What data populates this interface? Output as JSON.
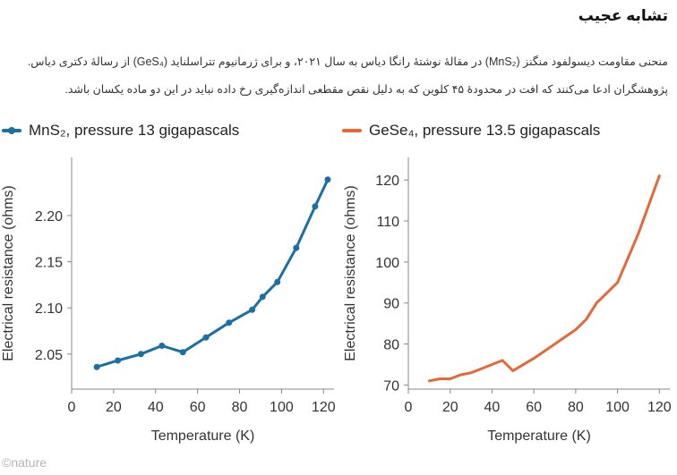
{
  "title": "تشابه عجیب",
  "description": [
    "منحنی مقاومت دیسولفود منگنز (MnS₂) در مقالهٔ نوشتهٔ رانگا دیاس به سال ۲۰۲۱، و برای ژرمانیوم تتراسلناید (GeS₄) از رسالهٔ دکتری دیاس.",
    "پژوهشگران ادعا می‌کنند که افت در محدودهٔ ۴۵ کلوین که به دلیل نقص مقطعی اندازه‌گیری رخ داده نباید در این دو ماده یکسان باشد."
  ],
  "credit": "©nature",
  "colors": {
    "mns2": "#1a6fa3",
    "gese4": "#e3693a",
    "axis": "#888888"
  },
  "chart_data": [
    {
      "type": "line",
      "legend_label": "MnS₂, pressure 13 gigapascals",
      "xlabel": "Temperature (K)",
      "ylabel": "Electrical resistance (ohms)",
      "xlim": [
        0,
        125
      ],
      "ylim": [
        2.012,
        2.263
      ],
      "xticks": [
        0,
        20,
        40,
        60,
        80,
        100,
        120
      ],
      "yticks": [
        2.05,
        2.1,
        2.15,
        2.2
      ],
      "ytick_labels": [
        "2.05",
        "2.10",
        "2.15",
        "2.20"
      ],
      "markers": true,
      "x": [
        12,
        22,
        33,
        43,
        53,
        64,
        75,
        86,
        91,
        98,
        107,
        116,
        122
      ],
      "y": [
        2.036,
        2.043,
        2.05,
        2.059,
        2.052,
        2.068,
        2.084,
        2.098,
        2.112,
        2.128,
        2.165,
        2.21,
        2.239
      ]
    },
    {
      "type": "line",
      "legend_label": "GeSe₄, pressure 13.5 gigapascals",
      "xlabel": "Temperature (K)",
      "ylabel": "Electrical resistance (ohms)",
      "xlim": [
        0,
        125
      ],
      "ylim": [
        69,
        125.5
      ],
      "xticks": [
        0,
        20,
        40,
        60,
        80,
        100,
        120
      ],
      "yticks": [
        70,
        80,
        90,
        100,
        110,
        120
      ],
      "ytick_labels": [
        "70",
        "80",
        "90",
        "100",
        "110",
        "120"
      ],
      "markers": false,
      "x": [
        10,
        15,
        20,
        25,
        30,
        35,
        40,
        45,
        50,
        60,
        70,
        80,
        85,
        90,
        100,
        110,
        120
      ],
      "y": [
        71,
        71.5,
        71.5,
        72.5,
        73,
        74,
        75,
        76,
        73.5,
        76.5,
        80,
        83.5,
        86,
        90,
        95,
        107,
        121
      ]
    }
  ]
}
